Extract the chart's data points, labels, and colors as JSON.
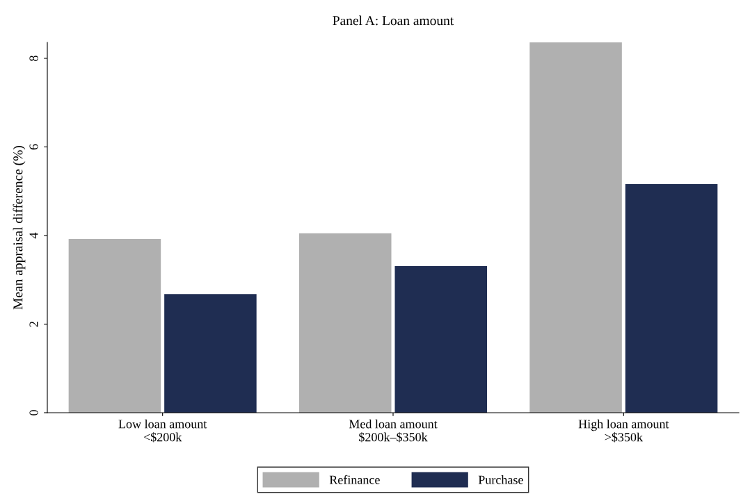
{
  "chart_data": {
    "type": "bar",
    "title": "Panel A: Loan amount",
    "ylabel": "Mean appraisal difference (%)",
    "categories": [
      "Low loan amount\n<$200k",
      "Med loan amount\n$200k–$350k",
      "High loan amount\n>$350k"
    ],
    "series": [
      {
        "name": "Refinance",
        "color": "#b0b0b0",
        "values": [
          3.92,
          4.05,
          8.36
        ]
      },
      {
        "name": "Purchase",
        "color": "#1f2d52",
        "values": [
          2.68,
          3.31,
          5.16
        ]
      }
    ],
    "ylim": [
      0,
      8.36
    ],
    "yticks": [
      0,
      2,
      4,
      6,
      8
    ],
    "grid": false,
    "legend": "bottom"
  }
}
